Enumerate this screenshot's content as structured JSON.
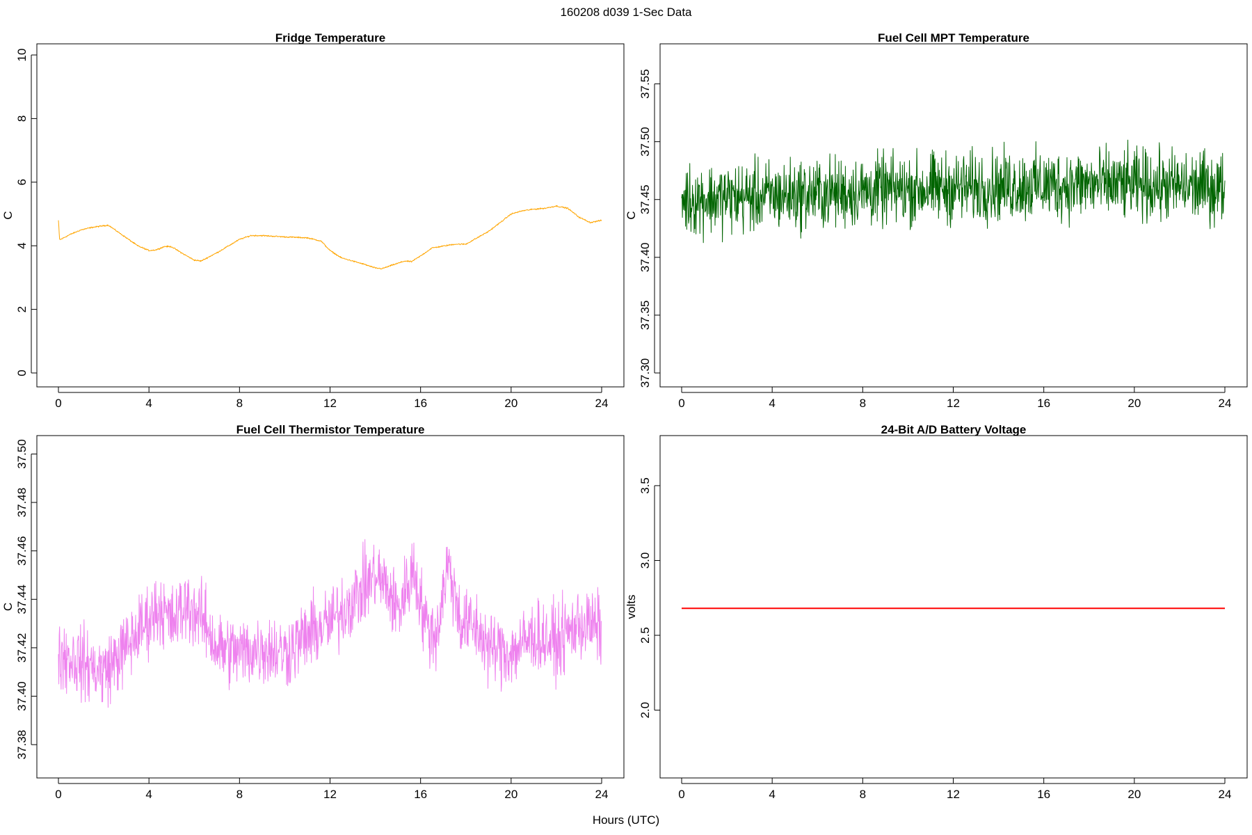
{
  "figure": {
    "title": "160208   d039   1-Sec Data",
    "shared_xlabel": "Hours (UTC)"
  },
  "chart_data": [
    {
      "id": "fridge",
      "type": "line",
      "title": "Fridge Temperature",
      "xlabel": "",
      "ylabel": "C",
      "color": "#ffa500",
      "xlim": [
        0,
        24
      ],
      "ylim": [
        0,
        10
      ],
      "xticks": [
        0,
        4,
        8,
        12,
        16,
        20,
        24
      ],
      "yticks": [
        0,
        2,
        4,
        6,
        8,
        10
      ],
      "ytick_labels": [
        "0",
        "2",
        "4",
        "6",
        "8",
        "10"
      ],
      "noise_amplitude": 0.03,
      "series": [
        {
          "x": [
            0,
            0.05,
            0.1,
            0.5,
            1,
            1.5,
            2,
            2.2,
            2.5,
            3,
            3.5,
            4,
            4.3,
            4.7,
            5,
            5.5,
            6,
            6.3,
            7,
            8,
            8.5,
            9,
            10,
            11,
            11.6,
            12,
            12.5,
            13,
            13.5,
            14,
            14.3,
            14.7,
            15.3,
            15.6,
            16,
            16.5,
            17.5,
            18,
            19,
            19.5,
            20,
            20.5,
            21,
            21.5,
            22,
            22.5,
            23,
            23.5,
            24
          ],
          "y": [
            4.8,
            4.2,
            4.2,
            4.35,
            4.5,
            4.58,
            4.63,
            4.65,
            4.5,
            4.25,
            4.0,
            3.85,
            3.87,
            3.98,
            3.97,
            3.75,
            3.55,
            3.52,
            3.78,
            4.2,
            4.32,
            4.32,
            4.28,
            4.25,
            4.15,
            3.85,
            3.62,
            3.52,
            3.42,
            3.3,
            3.28,
            3.38,
            3.52,
            3.5,
            3.68,
            3.93,
            4.05,
            4.05,
            4.45,
            4.72,
            5.0,
            5.1,
            5.15,
            5.18,
            5.25,
            5.18,
            4.9,
            4.73,
            4.8
          ]
        }
      ]
    },
    {
      "id": "mpt",
      "type": "line",
      "title": "Fuel Cell MPT Temperature",
      "xlabel": "",
      "ylabel": "C",
      "color": "#006400",
      "xlim": [
        0,
        24
      ],
      "ylim": [
        37.3,
        37.575
      ],
      "xticks": [
        0,
        4,
        8,
        12,
        16,
        20,
        24
      ],
      "yticks": [
        37.3,
        37.35,
        37.4,
        37.45,
        37.5,
        37.55
      ],
      "ytick_labels": [
        "37.30",
        "37.35",
        "37.40",
        "37.45",
        "37.50",
        "37.55"
      ],
      "noise_amplitude": 0.045,
      "series": [
        {
          "x": [
            0,
            3,
            6,
            9,
            12,
            15,
            18,
            21,
            24
          ],
          "y": [
            37.45,
            37.452,
            37.455,
            37.458,
            37.46,
            37.462,
            37.463,
            37.462,
            37.46
          ]
        }
      ]
    },
    {
      "id": "thermistor",
      "type": "line",
      "title": "Fuel Cell Thermistor Temperature",
      "xlabel": "",
      "ylabel": "C",
      "color": "#ee82ee",
      "xlim": [
        0,
        24
      ],
      "ylim": [
        37.372,
        37.503
      ],
      "xticks": [
        0,
        4,
        8,
        12,
        16,
        20,
        24
      ],
      "yticks": [
        37.38,
        37.4,
        37.42,
        37.44,
        37.46,
        37.48,
        37.5
      ],
      "ytick_labels": [
        "37.38",
        "37.40",
        "37.42",
        "37.44",
        "37.46",
        "37.48",
        "37.50"
      ],
      "noise_amplitude": 0.022,
      "series": [
        {
          "x": [
            0,
            1,
            2,
            3,
            4,
            4.5,
            5,
            5.7,
            6.5,
            7,
            8,
            9,
            10,
            11,
            11.5,
            12,
            13,
            14,
            14.5,
            15,
            15.7,
            16.2,
            16.7,
            17.2,
            17.8,
            18.5,
            19,
            20,
            21,
            22,
            23,
            24
          ],
          "y": [
            37.418,
            37.414,
            37.41,
            37.42,
            37.432,
            37.437,
            37.43,
            37.438,
            37.43,
            37.42,
            37.418,
            37.42,
            37.418,
            37.425,
            37.428,
            37.43,
            37.44,
            37.45,
            37.445,
            37.435,
            37.453,
            37.43,
            37.425,
            37.455,
            37.43,
            37.428,
            37.42,
            37.418,
            37.425,
            37.422,
            37.43,
            37.428
          ]
        }
      ]
    },
    {
      "id": "battery",
      "type": "line",
      "title": "24-Bit A/D Battery Voltage",
      "xlabel": "",
      "ylabel": "volts",
      "color": "#ff0000",
      "xlim": [
        0,
        24
      ],
      "ylim": [
        1.64,
        3.76
      ],
      "xticks": [
        0,
        4,
        8,
        12,
        16,
        20,
        24
      ],
      "yticks": [
        2.0,
        2.5,
        3.0,
        3.5
      ],
      "ytick_labels": [
        "2.0",
        "2.5",
        "3.0",
        "3.5"
      ],
      "noise_amplitude": 0,
      "series": [
        {
          "x": [
            0,
            24
          ],
          "y": [
            2.68,
            2.68
          ]
        }
      ]
    }
  ]
}
